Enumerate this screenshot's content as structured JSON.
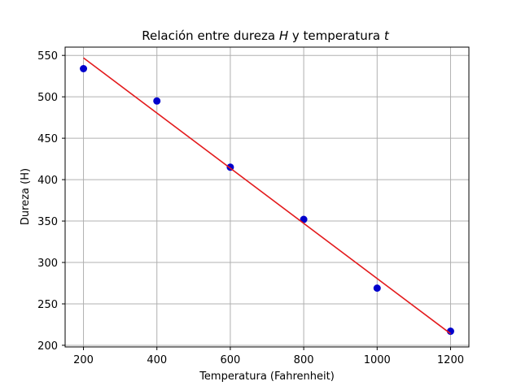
{
  "chart_data": {
    "type": "scatter",
    "title_prefix": "Relación entre dureza ",
    "title_var1": "H",
    "title_mid": " y temperatura ",
    "title_var2": "t",
    "xlabel": "Temperatura (Fahrenheit)",
    "ylabel": "Dureza (H)",
    "xlim": [
      150,
      1250
    ],
    "ylim": [
      198,
      560
    ],
    "x_ticks": [
      200,
      400,
      600,
      800,
      1000,
      1200
    ],
    "y_ticks": [
      200,
      250,
      300,
      350,
      400,
      450,
      500,
      550
    ],
    "grid": true,
    "series": [
      {
        "kind": "points",
        "color": "#0000cc",
        "x": [
          200,
          400,
          600,
          800,
          1000,
          1200
        ],
        "y": [
          534,
          495,
          415,
          352,
          269,
          217
        ]
      },
      {
        "kind": "fit-line",
        "color": "#e31a1c",
        "x": [
          200,
          1200
        ],
        "y": [
          547,
          214
        ]
      }
    ]
  }
}
